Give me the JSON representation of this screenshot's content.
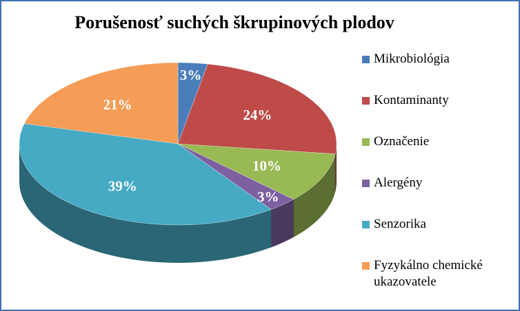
{
  "chart_data": {
    "type": "pie",
    "title": "Porušenosť suchých škrupinových plodov",
    "legend_position": "right",
    "three_d": true,
    "slices": [
      {
        "label": "Mikrobiológia",
        "value": 3,
        "display": "3%",
        "color": "#4a7ebb"
      },
      {
        "label": "Kontaminanty",
        "value": 24,
        "display": "24%",
        "color": "#be4b48"
      },
      {
        "label": "Označenie",
        "value": 10,
        "display": "10%",
        "color": "#98b954"
      },
      {
        "label": "Alergény",
        "value": 3,
        "display": "3%",
        "color": "#7d60a0"
      },
      {
        "label": "Senzorika",
        "value": 39,
        "display": "39%",
        "color": "#46aac5"
      },
      {
        "label": "Fyzykálno chemické ukazovatele",
        "value": 21,
        "display": "21%",
        "color": "#f59d56"
      }
    ]
  }
}
